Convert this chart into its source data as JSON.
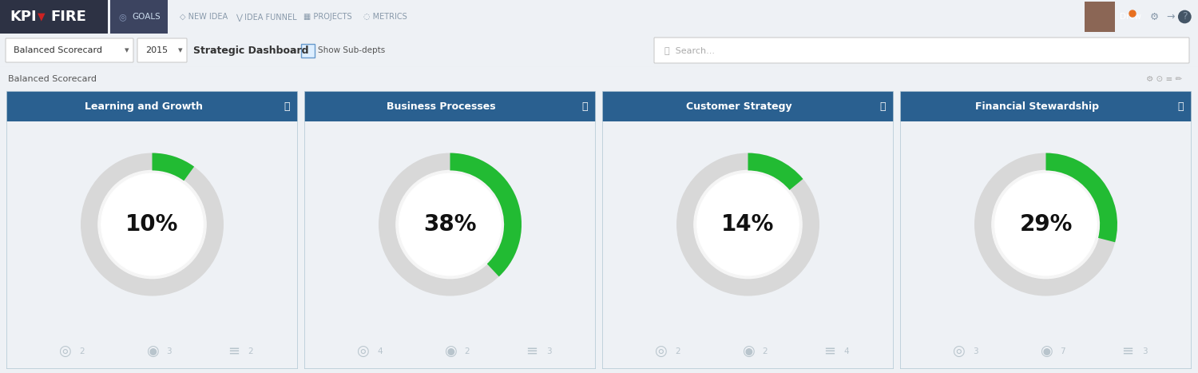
{
  "bg_color": "#22252e",
  "toolbar_color": "#2d3244",
  "content_bg": "#eef1f5",
  "card_bg": "#ffffff",
  "card_border": "#b8ccd8",
  "header_blue": "#2a6090",
  "header_text": "#ffffff",
  "gauge_bg": "#d8d8d8",
  "gauge_green": "#22bb33",
  "gauge_inner": "#f0f0f0",
  "text_dark": "#111111",
  "icon_color": "#b8c4cc",
  "title": "Balanced Scorecard",
  "subtitle": "Strategic Dashboard",
  "year": "2015",
  "search_placeholder": "Search...",
  "show_subdepts": "Show Sub-depts",
  "nav_items": [
    "GOALS",
    "NEW IDEA",
    "IDEA FUNNEL",
    "PROJECTS",
    "METRICS"
  ],
  "cards": [
    {
      "title": "Learning and Growth",
      "percent": 10,
      "icon_counts": [
        2,
        3,
        2
      ]
    },
    {
      "title": "Business Processes",
      "percent": 38,
      "icon_counts": [
        4,
        2,
        3
      ]
    },
    {
      "title": "Customer Strategy",
      "percent": 14,
      "icon_counts": [
        2,
        2,
        4
      ]
    },
    {
      "title": "Financial Stewardship",
      "percent": 29,
      "icon_counts": [
        3,
        7,
        3
      ]
    }
  ]
}
